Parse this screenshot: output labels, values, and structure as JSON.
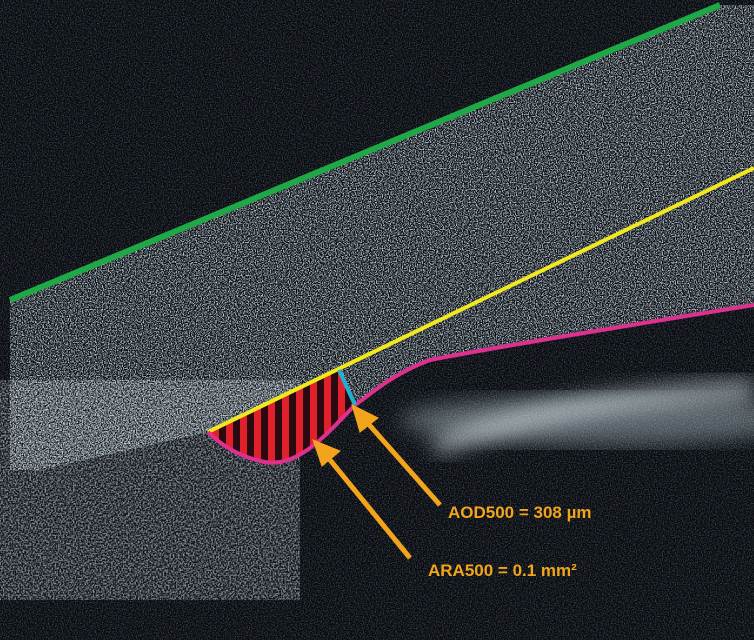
{
  "annotations": [
    {
      "label": "AOD500 = 308 µm"
    },
    {
      "label": "ARA500 = 0.1 mm²"
    }
  ]
}
